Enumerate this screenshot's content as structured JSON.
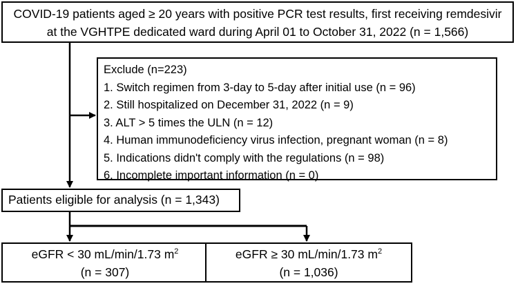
{
  "top_box": {
    "line1": "COVID-19 patients aged ≥ 20 years with positive PCR test results, first receiving remdesivir",
    "line2": "at the VGHTPE dedicated ward during April 01 to October 31, 2022 (n = 1,566)"
  },
  "exclude_box": {
    "title": "Exclude (n=223)",
    "items": [
      "1.  Switch regimen from 3-day to 5-day after initial use (n = 96)",
      "2.  Still hospitalized on December 31, 2022 (n = 9)",
      "3.  ALT > 5 times the ULN (n = 12)",
      "4.  Human immunodeficiency virus infection, pregnant woman (n = 8)",
      "5.  Indications didn't comply with the regulations (n = 98)",
      "6.  Incomplete important information (n = 0)"
    ]
  },
  "eligible_box": {
    "label": "Patients eligible for analysis (n = 1,343)"
  },
  "left_result": {
    "label": "eGFR < 30 mL/min/1.73 m",
    "superscript": "2",
    "count": "(n = 307)"
  },
  "right_result": {
    "label": "eGFR ≥ 30 mL/min/1.73 m",
    "superscript": "2",
    "count": "(n = 1,036)"
  }
}
